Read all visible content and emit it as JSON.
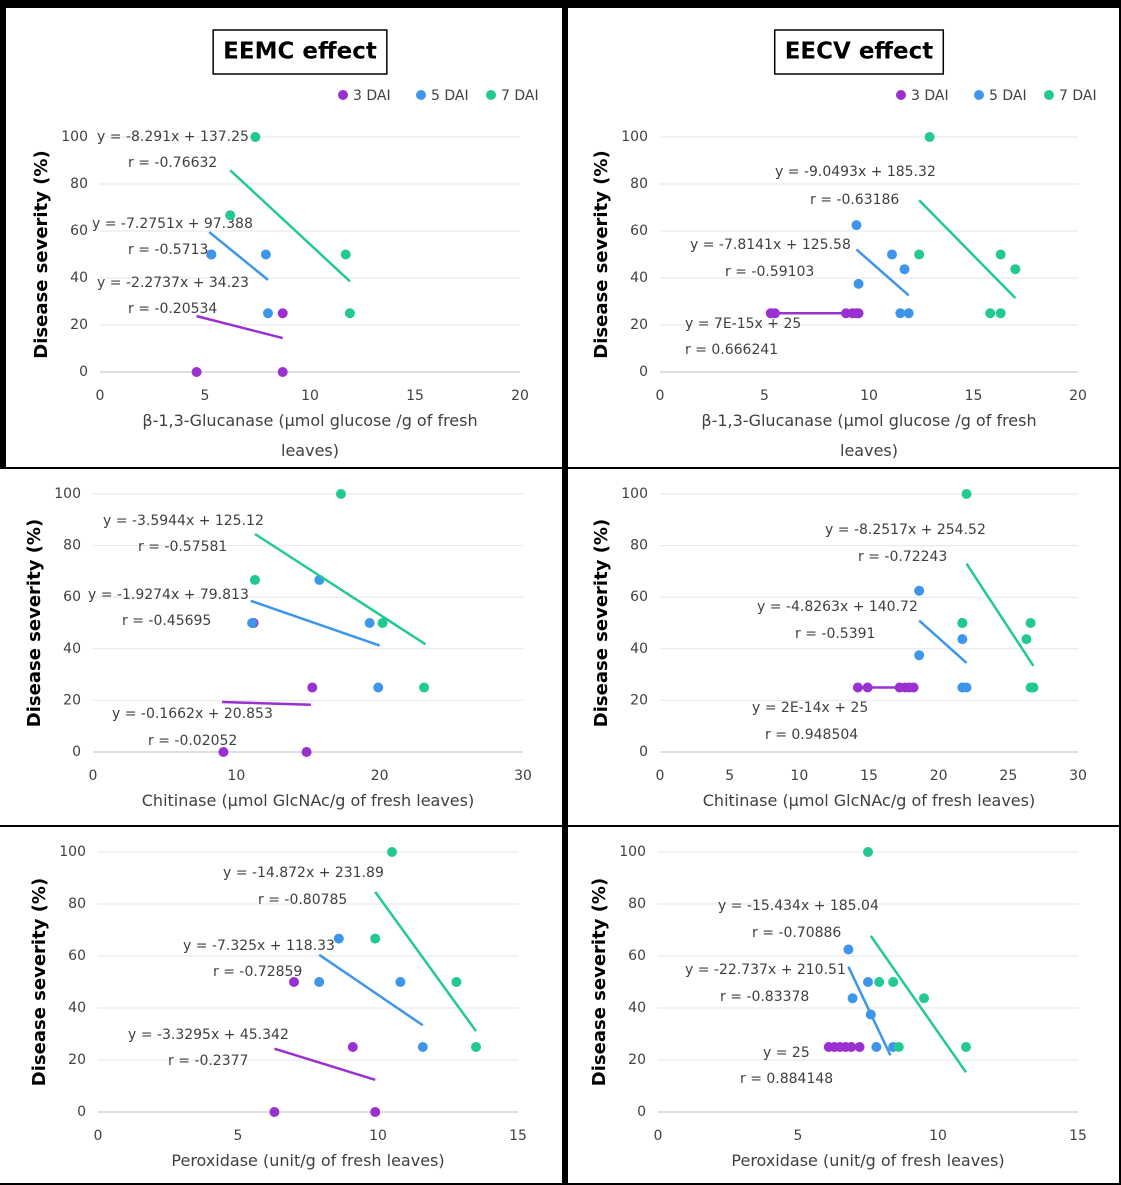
{
  "chart_data": [
    {
      "type": "scatter",
      "header": "EEMC effect",
      "legend": true,
      "grid": true,
      "xlabel": "β-1,3-Glucanase (µmol glucose /g of fresh leaves)",
      "ylabel": "Disease severity (%)",
      "xlim": [
        0,
        20
      ],
      "xticks": [
        0,
        5,
        10,
        15,
        20
      ],
      "ylim": [
        0,
        100
      ],
      "yticks": [
        0,
        20,
        40,
        60,
        80,
        100
      ],
      "series": [
        {
          "name": "3 DAI",
          "color": "#9b30d0",
          "x": [
            4.6,
            5.3,
            8.7,
            8.7
          ],
          "values": [
            0,
            50,
            25,
            0
          ],
          "trend": {
            "x": [
              4.6,
              8.7
            ],
            "y": [
              23.77,
              14.45
            ]
          },
          "equation": "y = -2.2737x + 34.23",
          "r_label": "r = -0.20534"
        },
        {
          "name": "5 DAI",
          "color": "#3d96ec",
          "x": [
            5.3,
            7.9,
            8.0
          ],
          "values": [
            50,
            50,
            25
          ],
          "trend": {
            "x": [
              5.2,
              8.0
            ],
            "y": [
              59.56,
              39.19
            ]
          },
          "equation": "y = -7.2751x + 97.388",
          "r_label": "r = -0.5713"
        },
        {
          "name": "7 DAI",
          "color": "#22c993",
          "x": [
            7.4,
            6.2,
            11.7,
            11.9
          ],
          "values": [
            100,
            66.7,
            50,
            25
          ],
          "trend": {
            "x": [
              6.2,
              11.9
            ],
            "y": [
              85.85,
              38.59
            ]
          },
          "equation": "y = -8.291x + 137.25",
          "r_label": "r = -0.76632"
        }
      ]
    },
    {
      "type": "scatter",
      "header": "EECV effect",
      "legend": true,
      "grid": true,
      "xlabel": "β-1,3-Glucanase (µmol glucose /g of fresh leaves)",
      "ylabel": "Disease severity (%)",
      "xlim": [
        0,
        20
      ],
      "xticks": [
        0,
        5,
        10,
        15,
        20
      ],
      "ylim": [
        0,
        100
      ],
      "yticks": [
        0,
        20,
        40,
        60,
        80,
        100
      ],
      "series": [
        {
          "name": "3 DAI",
          "color": "#9b30d0",
          "x": [
            5.3,
            5.5,
            8.9,
            9.2,
            9.4,
            9.5
          ],
          "values": [
            25,
            25,
            25,
            25,
            25,
            25
          ],
          "trend": {
            "x": [
              5.3,
              9.5
            ],
            "y": [
              25,
              25
            ]
          },
          "equation": "y = 7E-15x + 25",
          "r_label": "r = 0.666241"
        },
        {
          "name": "5 DAI",
          "color": "#3d96ec",
          "x": [
            9.4,
            9.5,
            11.1,
            11.7,
            11.5,
            11.9
          ],
          "values": [
            62.5,
            37.5,
            50,
            43.75,
            25,
            25
          ],
          "trend": {
            "x": [
              9.4,
              11.9
            ],
            "y": [
              52.13,
              32.59
            ]
          },
          "equation": "y = -7.8141x + 125.58",
          "r_label": "r = -0.59103"
        },
        {
          "name": "7 DAI",
          "color": "#22c993",
          "x": [
            12.9,
            12.4,
            16.3,
            17.0,
            15.8,
            16.3
          ],
          "values": [
            100,
            50,
            50,
            43.75,
            25,
            25
          ],
          "trend": {
            "x": [
              12.4,
              17.0
            ],
            "y": [
              73.11,
              31.48
            ]
          },
          "equation": "y = -9.0493x + 185.32",
          "r_label": "r = -0.63186"
        }
      ]
    },
    {
      "type": "scatter",
      "legend": false,
      "grid": true,
      "xlabel": "Chitinase (µmol GlcNAc/g of fresh leaves)",
      "ylabel": "Disease severity (%)",
      "xlim": [
        0,
        30
      ],
      "xticks": [
        0,
        10,
        20,
        30
      ],
      "ylim": [
        0,
        100
      ],
      "yticks": [
        0,
        20,
        40,
        60,
        80,
        100
      ],
      "series": [
        {
          "color": "#9b30d0",
          "x": [
            11.2,
            15.3,
            9.1,
            14.9
          ],
          "values": [
            50,
            25,
            0,
            0
          ],
          "trend": {
            "x": [
              9.0,
              15.2
            ],
            "y": [
              19.36,
              18.33
            ]
          },
          "equation": "y = -0.1662x + 20.853",
          "r_label": "r = -0.02052"
        },
        {
          "color": "#3d96ec",
          "x": [
            15.8,
            11.1,
            19.3,
            19.9
          ],
          "values": [
            66.7,
            50,
            50,
            25
          ],
          "trend": {
            "x": [
              11.0,
              20.0
            ],
            "y": [
              58.61,
              41.26
            ]
          },
          "equation": "y = -1.9274x + 79.813",
          "r_label": "r = -0.45695"
        },
        {
          "color": "#22c993",
          "x": [
            17.3,
            11.3,
            20.2,
            23.1
          ],
          "values": [
            100,
            66.7,
            50,
            25
          ],
          "trend": {
            "x": [
              11.3,
              23.2
            ],
            "y": [
              84.5,
              41.73
            ]
          },
          "equation": "y = -3.5944x + 125.12",
          "r_label": "r = -0.57581"
        }
      ]
    },
    {
      "type": "scatter",
      "legend": false,
      "grid": true,
      "xlabel": "Chitinase (µmol GlcNAc/g of fresh leaves)",
      "ylabel": "Disease severity (%)",
      "xlim": [
        0,
        30
      ],
      "xticks": [
        0,
        5,
        10,
        15,
        20,
        25,
        30
      ],
      "ylim": [
        0,
        100
      ],
      "yticks": [
        0,
        20,
        40,
        60,
        80,
        100
      ],
      "series": [
        {
          "color": "#9b30d0",
          "x": [
            14.2,
            14.9,
            17.2,
            17.6,
            17.9,
            18.2
          ],
          "values": [
            25,
            25,
            25,
            25,
            25,
            25
          ],
          "trend": {
            "x": [
              14.2,
              18.2
            ],
            "y": [
              25,
              25
            ]
          },
          "equation": "y = 2E-14x + 25",
          "r_label": "r = 0.948504"
        },
        {
          "color": "#3d96ec",
          "x": [
            18.6,
            18.6,
            21.7,
            21.7,
            21.7,
            22.0
          ],
          "values": [
            62.5,
            37.5,
            50,
            43.75,
            25,
            25
          ],
          "trend": {
            "x": [
              18.6,
              22.0
            ],
            "y": [
              50.95,
              34.54
            ]
          },
          "equation": "y = -4.8263x + 140.72",
          "r_label": "r = -0.5391"
        },
        {
          "color": "#22c993",
          "x": [
            22.0,
            21.7,
            26.6,
            26.3,
            26.6,
            26.8
          ],
          "values": [
            100,
            50,
            50,
            43.75,
            25,
            25
          ],
          "trend": {
            "x": [
              22.0,
              26.8
            ],
            "y": [
              72.98,
              33.37
            ]
          },
          "equation": "y = -8.2517x + 254.52",
          "r_label": "r = -0.72243"
        }
      ]
    },
    {
      "type": "scatter",
      "legend": false,
      "grid": true,
      "xlabel": "Peroxidase (unit/g of fresh leaves)",
      "ylabel": "Disease severity (%)",
      "xlim": [
        0,
        15
      ],
      "xticks": [
        0,
        5,
        10,
        15
      ],
      "ylim": [
        0,
        100
      ],
      "yticks": [
        0,
        20,
        40,
        60,
        80,
        100
      ],
      "series": [
        {
          "color": "#9b30d0",
          "x": [
            7.0,
            9.1,
            6.3,
            9.9
          ],
          "values": [
            50,
            25,
            0,
            0
          ],
          "trend": {
            "x": [
              6.3,
              9.9
            ],
            "y": [
              24.37,
              12.38
            ]
          },
          "equation": "y = -3.3295x + 45.342",
          "r_label": "r = -0.2377"
        },
        {
          "color": "#3d96ec",
          "x": [
            8.6,
            7.9,
            10.8,
            11.6
          ],
          "values": [
            66.7,
            50,
            50,
            25
          ],
          "trend": {
            "x": [
              7.9,
              11.6
            ],
            "y": [
              60.46,
              33.36
            ]
          },
          "equation": "y = -7.325x + 118.33",
          "r_label": "r = -0.72859"
        },
        {
          "color": "#22c993",
          "x": [
            10.5,
            9.9,
            12.8,
            13.5
          ],
          "values": [
            100,
            66.7,
            50,
            25
          ],
          "trend": {
            "x": [
              9.9,
              13.5
            ],
            "y": [
              84.66,
              31.12
            ]
          },
          "equation": "y = -14.872x + 231.89",
          "r_label": "r = -0.80785"
        }
      ]
    },
    {
      "type": "scatter",
      "legend": false,
      "grid": true,
      "xlabel": "Peroxidase (unit/g of fresh leaves)",
      "ylabel": "Disease severity (%)",
      "xlim": [
        0,
        15
      ],
      "xticks": [
        0,
        5,
        10,
        15
      ],
      "ylim": [
        0,
        100
      ],
      "yticks": [
        0,
        20,
        40,
        60,
        80,
        100
      ],
      "series": [
        {
          "color": "#9b30d0",
          "x": [
            6.1,
            6.3,
            6.5,
            6.7,
            6.9,
            7.2
          ],
          "values": [
            25,
            25,
            25,
            25,
            25,
            25
          ],
          "trend": {
            "x": [
              6.1,
              7.3
            ],
            "y": [
              25,
              25
            ]
          },
          "equation": "y = 25",
          "r_label": "r = 0.884148"
        },
        {
          "color": "#3d96ec",
          "x": [
            6.8,
            6.95,
            7.5,
            7.6,
            7.8,
            8.4
          ],
          "values": [
            62.5,
            43.75,
            50,
            37.5,
            25,
            25
          ],
          "trend": {
            "x": [
              6.8,
              8.3
            ],
            "y": [
              55.9,
              21.79
            ]
          },
          "equation": "y = -22.737x + 210.51",
          "r_label": "r = -0.83378"
        },
        {
          "color": "#22c993",
          "x": [
            7.5,
            7.9,
            8.4,
            9.5,
            8.6,
            11.0
          ],
          "values": [
            100,
            50,
            50,
            43.75,
            25,
            25
          ],
          "trend": {
            "x": [
              7.6,
              11.0
            ],
            "y": [
              67.74,
              15.27
            ]
          },
          "equation": "y = -15.434x + 185.04",
          "r_label": "r = -0.70886"
        }
      ]
    }
  ]
}
